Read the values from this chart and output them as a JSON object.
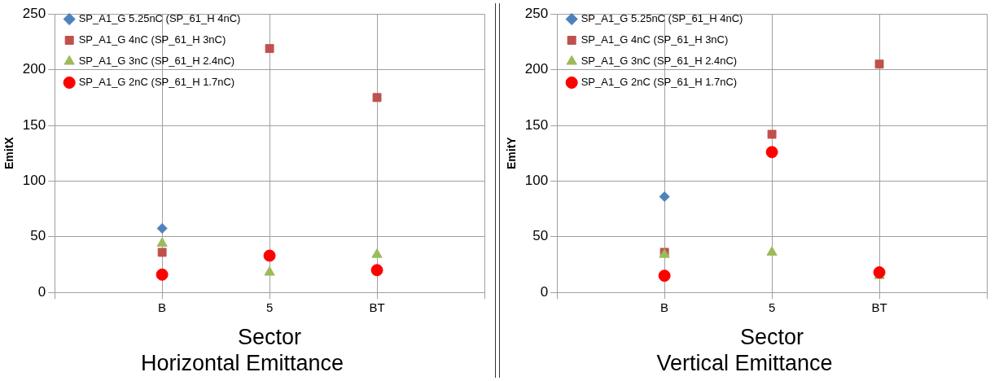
{
  "chart_data": [
    {
      "type": "scatter",
      "title": "Horizontal Emittance",
      "xlabel": "Sector",
      "ylabel": "EmitX",
      "categories": [
        null,
        "B",
        "5",
        "BT",
        null
      ],
      "ylim": [
        0,
        250
      ],
      "yticks": [
        0,
        50,
        100,
        150,
        200,
        250
      ],
      "grid": true,
      "legend": "top left",
      "series": [
        {
          "name": "SP_A1_G 5.25nC (SP_61_H 4nC)",
          "color": "#4f81bd",
          "marker": "diamond",
          "values": [
            null,
            57.5,
            null,
            null,
            null
          ]
        },
        {
          "name": "SP_A1_G 4nC (SP_61_H 3nC)",
          "color": "#c0504d",
          "marker": "square",
          "values": [
            null,
            36,
            219,
            175,
            null
          ]
        },
        {
          "name": "SP_A1_G 3nC (SP_61_H 2.4nC)",
          "color": "#9bbb59",
          "marker": "triangle",
          "values": [
            null,
            44,
            18,
            34,
            null
          ]
        },
        {
          "name": "SP_A1_G 2nC (SP_61_H 1.7nC)",
          "color": "#ff0000",
          "marker": "circle",
          "values": [
            null,
            16,
            33,
            20,
            null
          ]
        }
      ]
    },
    {
      "type": "scatter",
      "title": "Vertical Emittance",
      "xlabel": "Sector",
      "ylabel": "EmitY",
      "categories": [
        null,
        "B",
        "5",
        "BT",
        null
      ],
      "ylim": [
        0,
        250
      ],
      "yticks": [
        0,
        50,
        100,
        150,
        200,
        250
      ],
      "grid": true,
      "legend": "top left",
      "series": [
        {
          "name": "SP_A1_G 5.25nC (SP_61_H 4nC)",
          "color": "#4f81bd",
          "marker": "diamond",
          "values": [
            null,
            86,
            null,
            null,
            null
          ]
        },
        {
          "name": "SP_A1_G 4nC (SP_61_H 3nC)",
          "color": "#c0504d",
          "marker": "square",
          "values": [
            null,
            36,
            142,
            205,
            null
          ]
        },
        {
          "name": "SP_A1_G 3nC (SP_61_H 2.4nC)",
          "color": "#9bbb59",
          "marker": "triangle",
          "values": [
            null,
            34,
            36,
            15,
            null
          ]
        },
        {
          "name": "SP_A1_G 2nC (SP_61_H 1.7nC)",
          "color": "#ff0000",
          "marker": "circle",
          "values": [
            null,
            15,
            126,
            18,
            null
          ]
        }
      ]
    }
  ]
}
